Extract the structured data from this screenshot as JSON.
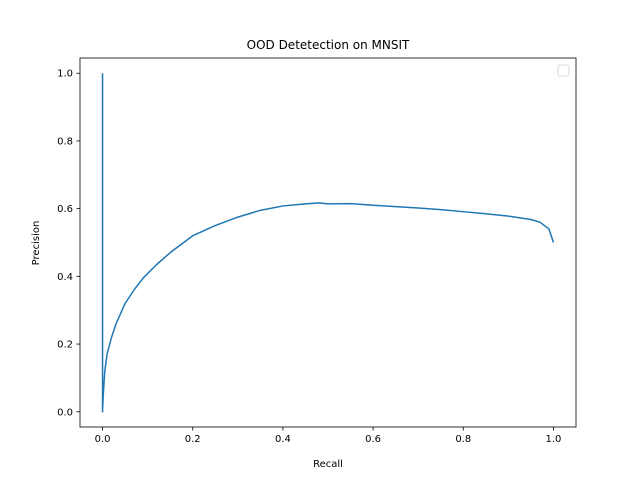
{
  "chart_data": {
    "type": "line",
    "title": "OOD Detetection on MNSIT",
    "xlabel": "Recall",
    "ylabel": "Precision",
    "xlim": [
      -0.05,
      1.05
    ],
    "ylim": [
      -0.045,
      1.045
    ],
    "xticks": [
      0.0,
      0.2,
      0.4,
      0.6,
      0.8,
      1.0
    ],
    "xtick_labels": [
      "0.0",
      "0.2",
      "0.4",
      "0.6",
      "0.8",
      "1.0"
    ],
    "yticks": [
      0.0,
      0.2,
      0.4,
      0.6,
      0.8,
      1.0
    ],
    "ytick_labels": [
      "0.0",
      "0.2",
      "0.4",
      "0.6",
      "0.8",
      "1.0"
    ],
    "grid": false,
    "legend": {
      "placement": "upper right",
      "entries": []
    },
    "series": [
      {
        "color": "#1f77b4",
        "x": [
          0.0,
          0.0,
          0.0,
          0.002,
          0.005,
          0.01,
          0.02,
          0.03,
          0.04,
          0.05,
          0.07,
          0.09,
          0.12,
          0.15,
          0.18,
          0.2,
          0.25,
          0.3,
          0.35,
          0.4,
          0.45,
          0.48,
          0.5,
          0.55,
          0.6,
          0.65,
          0.7,
          0.75,
          0.8,
          0.85,
          0.9,
          0.95,
          0.97,
          0.99,
          1.0
        ],
        "y": [
          1.0,
          0.0,
          0.005,
          0.06,
          0.12,
          0.17,
          0.22,
          0.26,
          0.29,
          0.32,
          0.36,
          0.395,
          0.435,
          0.47,
          0.5,
          0.52,
          0.55,
          0.575,
          0.595,
          0.608,
          0.614,
          0.617,
          0.614,
          0.615,
          0.61,
          0.606,
          0.602,
          0.597,
          0.591,
          0.585,
          0.578,
          0.568,
          0.56,
          0.54,
          0.5
        ]
      }
    ]
  }
}
